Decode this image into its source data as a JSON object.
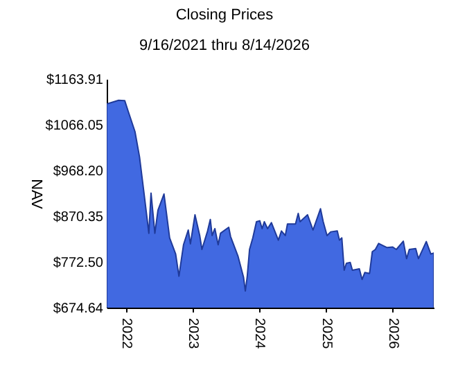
{
  "chart_data": {
    "type": "area",
    "title": "Closing Prices",
    "subtitle": "9/16/2021 thru 8/14/2026",
    "ylabel": "NAV",
    "x": [
      "2021-09-16",
      "2021-11-20",
      "2021-12-24",
      "2022-01-11",
      "2022-02-18",
      "2022-03-15",
      "2022-04-09",
      "2022-05-05",
      "2022-05-17",
      "2022-06-07",
      "2022-06-24",
      "2022-07-27",
      "2022-08-27",
      "2022-09-29",
      "2022-10-17",
      "2022-11-11",
      "2022-12-07",
      "2022-12-19",
      "2023-01-13",
      "2023-02-08",
      "2023-02-20",
      "2023-03-23",
      "2023-04-07",
      "2023-04-17",
      "2023-05-02",
      "2023-05-20",
      "2023-06-02",
      "2023-07-17",
      "2023-07-27",
      "2023-09-06",
      "2023-10-06",
      "2023-10-16",
      "2023-10-26",
      "2023-11-08",
      "2023-11-26",
      "2023-12-16",
      "2024-01-03",
      "2024-01-16",
      "2024-01-28",
      "2024-02-15",
      "2024-03-07",
      "2024-04-14",
      "2024-05-01",
      "2024-05-22",
      "2024-06-03",
      "2024-07-17",
      "2024-08-01",
      "2024-08-11",
      "2024-09-21",
      "2024-10-21",
      "2024-11-15",
      "2024-12-01",
      "2024-12-16",
      "2025-01-06",
      "2025-01-26",
      "2025-03-03",
      "2025-03-15",
      "2025-03-28",
      "2025-04-10",
      "2025-04-22",
      "2025-05-13",
      "2025-05-25",
      "2025-07-02",
      "2025-07-17",
      "2025-08-01",
      "2025-08-27",
      "2025-09-11",
      "2025-09-28",
      "2025-10-16",
      "2025-12-01",
      "2026-01-01",
      "2026-01-21",
      "2026-02-28",
      "2026-03-18",
      "2026-04-02",
      "2026-05-07",
      "2026-05-22",
      "2026-07-04",
      "2026-07-29",
      "2026-08-14"
    ],
    "series": [
      {
        "color": "#4169e1",
        "values": [
          1110.5,
          1118.4,
          1117.4,
          1095.7,
          1051.2,
          996.9,
          917.8,
          833.8,
          919.8,
          833.8,
          883.2,
          917.8,
          823.9,
          789.3,
          741.9,
          809.1,
          840.7,
          811.1,
          873.3,
          828.9,
          799.2,
          838.7,
          863.4,
          828.9,
          843.7,
          809.1,
          833.8,
          846.6,
          826.9,
          784.4,
          739.9,
          710.3,
          739.9,
          799.2,
          823.9,
          858.5,
          860.5,
          843.7,
          858.5,
          843.7,
          856.5,
          819.0,
          838.7,
          828.9,
          853.6,
          853.6,
          876.3,
          858.5,
          873.3,
          840.7,
          868.4,
          886.2,
          858.5,
          828.9,
          836.8,
          838.7,
          819.0,
          823.9,
          754.7,
          769.6,
          771.5,
          754.7,
          757.7,
          735.0,
          749.8,
          747.8,
          794.3,
          799.2,
          812.1,
          803.2,
          804.2,
          799.2,
          816.9,
          779.4,
          799.2,
          801.2,
          779.4,
          816.0,
          789.3,
          791.3
        ]
      }
    ],
    "xlim": [
      "2021-09-16",
      "2026-08-14"
    ],
    "xticks": [
      "2022",
      "2023",
      "2024",
      "2025",
      "2026"
    ],
    "ylim": [
      674.64,
      1163.91
    ],
    "yticks": [
      {
        "value": 674.64,
        "label": "$674.64"
      },
      {
        "value": 772.5,
        "label": "$772.50"
      },
      {
        "value": 870.35,
        "label": "$870.35"
      },
      {
        "value": 968.2,
        "label": "$968.20"
      },
      {
        "value": 1066.05,
        "label": "$1066.05"
      },
      {
        "value": 1163.91,
        "label": "$1163.91"
      }
    ],
    "grid": false
  }
}
